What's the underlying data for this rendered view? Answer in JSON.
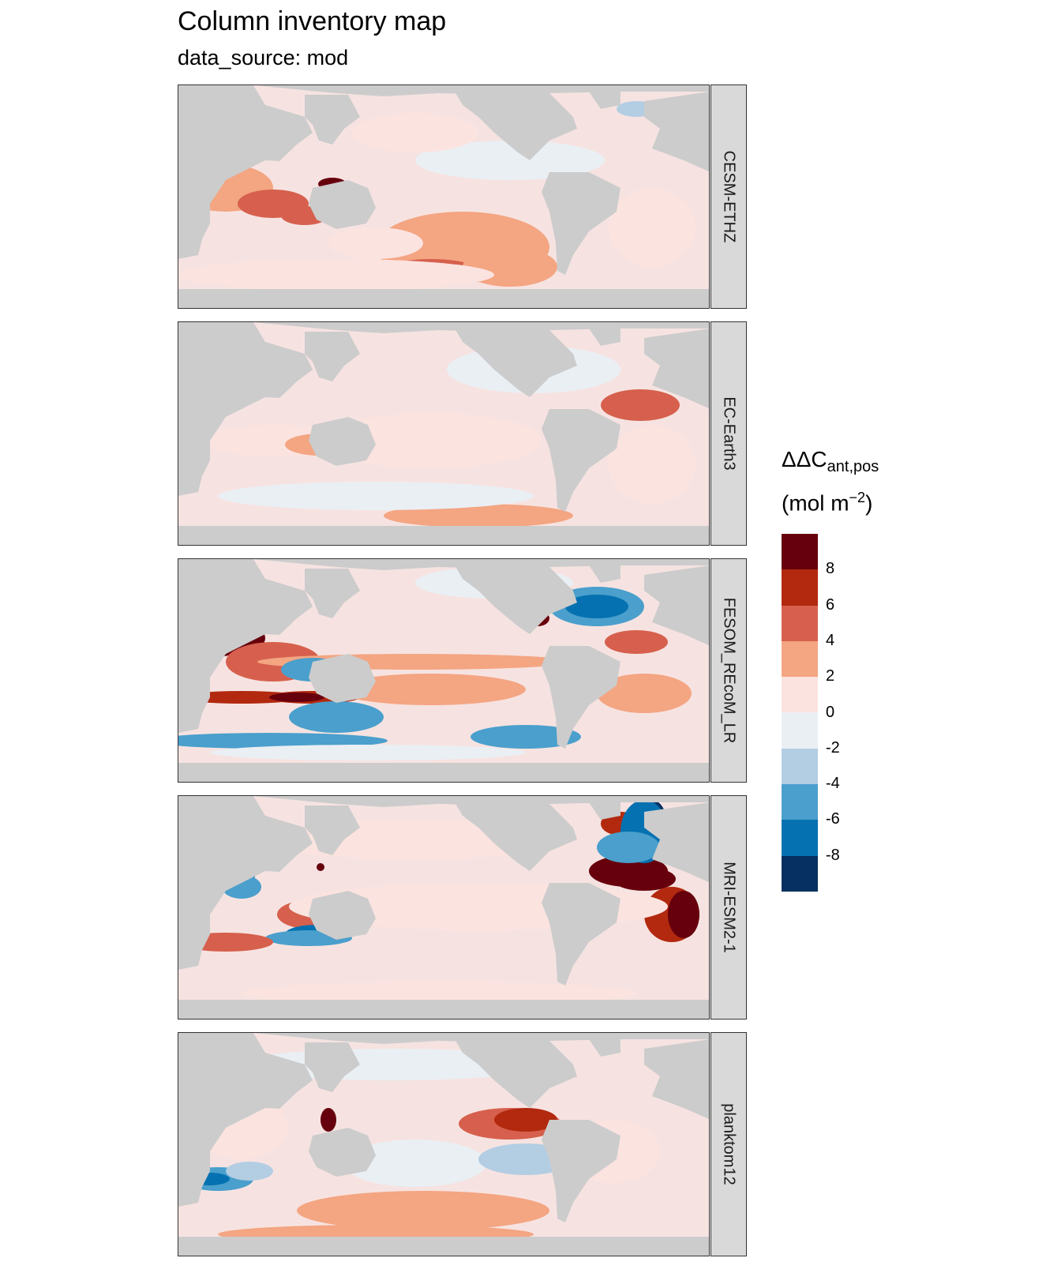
{
  "title": "Column inventory map",
  "subtitle": "data_source: mod",
  "panels": [
    {
      "label": "CESM-ETHZ"
    },
    {
      "label": "EC-Earth3"
    },
    {
      "label": "FESOM_REcoM_LR"
    },
    {
      "label": "MRI-ESM2-1"
    },
    {
      "label": "planktom12"
    }
  ],
  "legend": {
    "title_main": "ΔΔC",
    "title_sub": "ant,pos",
    "unit_prefix": "(mol m",
    "unit_exp": "−2",
    "unit_suffix": ")",
    "breaks": [
      "8",
      "6",
      "4",
      "2",
      "0",
      "-2",
      "-4",
      "-6",
      "-8"
    ],
    "colors": [
      "#67000d",
      "#b2290f",
      "#d6604d",
      "#f4a582",
      "#fbe3e0",
      "#eaeff4",
      "#b3cde3",
      "#4a9fcc",
      "#0571b0",
      "#053061"
    ]
  },
  "colors": {
    "land": "#cccccc",
    "ocean_base": "#f6e3e1",
    "strip_bg": "#d9d9d9"
  }
}
